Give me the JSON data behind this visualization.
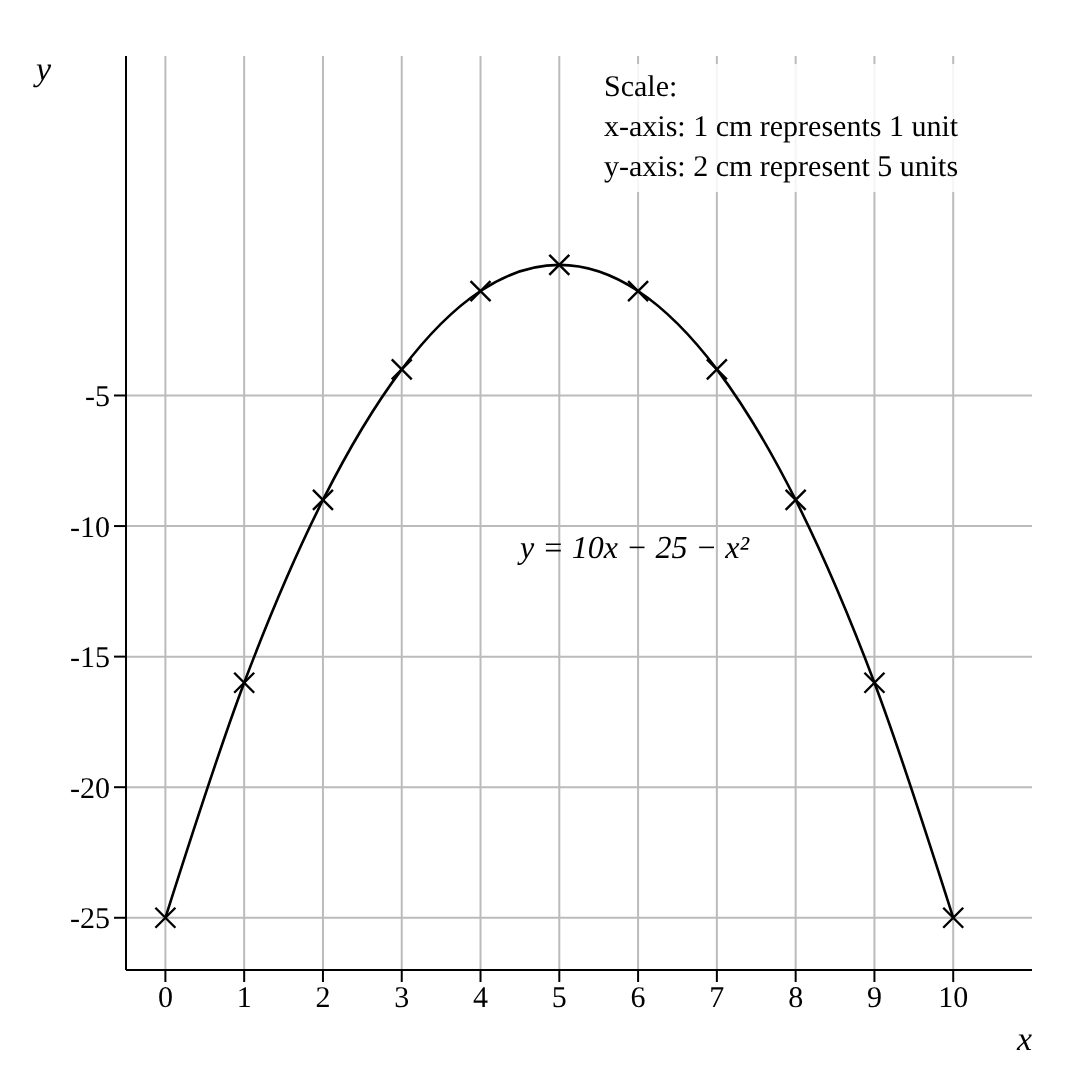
{
  "chart_data": {
    "type": "line",
    "x": [
      0,
      1,
      2,
      3,
      4,
      5,
      6,
      7,
      8,
      9,
      10
    ],
    "series": [
      {
        "color": "#000000",
        "values": [
          -25,
          -16,
          -9,
          -4,
          -1,
          0,
          -1,
          -4,
          -9,
          -16,
          -25
        ]
      }
    ],
    "xlim": [
      -0.5,
      11
    ],
    "xticks": [
      0,
      1,
      2,
      3,
      4,
      5,
      6,
      7,
      8,
      9,
      10
    ],
    "ylim": [
      -27,
      8
    ],
    "yticks": [
      -25,
      -20,
      -15,
      -10,
      -5
    ],
    "xlabel": "x",
    "ylabel": "y",
    "grid": true,
    "marker": "cross",
    "line_style": "solid",
    "annotations": [
      "Scale:",
      "x-axis: 1 cm represents 1 unit",
      "y-axis: 2 cm represent 5 units",
      "y = 10x − 25 − x²"
    ]
  }
}
